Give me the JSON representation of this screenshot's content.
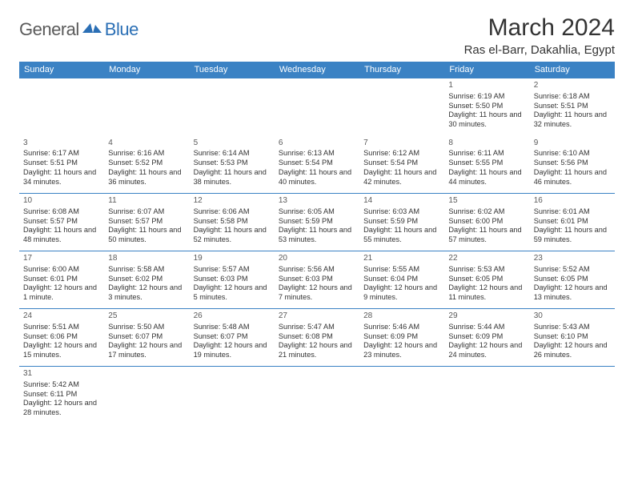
{
  "logo": {
    "part1": "General",
    "part2": "Blue"
  },
  "title": "March 2024",
  "location": "Ras el-Barr, Dakahlia, Egypt",
  "colors": {
    "header_bg": "#3b82c4",
    "header_fg": "#ffffff",
    "border": "#3b82c4",
    "logo_gray": "#5a5a5a",
    "logo_blue": "#2b6fb5",
    "text": "#333333"
  },
  "weekdays": [
    "Sunday",
    "Monday",
    "Tuesday",
    "Wednesday",
    "Thursday",
    "Friday",
    "Saturday"
  ],
  "first_weekday_index": 5,
  "days": [
    {
      "n": 1,
      "sunrise": "6:19 AM",
      "sunset": "5:50 PM",
      "daylight": "11 hours and 30 minutes."
    },
    {
      "n": 2,
      "sunrise": "6:18 AM",
      "sunset": "5:51 PM",
      "daylight": "11 hours and 32 minutes."
    },
    {
      "n": 3,
      "sunrise": "6:17 AM",
      "sunset": "5:51 PM",
      "daylight": "11 hours and 34 minutes."
    },
    {
      "n": 4,
      "sunrise": "6:16 AM",
      "sunset": "5:52 PM",
      "daylight": "11 hours and 36 minutes."
    },
    {
      "n": 5,
      "sunrise": "6:14 AM",
      "sunset": "5:53 PM",
      "daylight": "11 hours and 38 minutes."
    },
    {
      "n": 6,
      "sunrise": "6:13 AM",
      "sunset": "5:54 PM",
      "daylight": "11 hours and 40 minutes."
    },
    {
      "n": 7,
      "sunrise": "6:12 AM",
      "sunset": "5:54 PM",
      "daylight": "11 hours and 42 minutes."
    },
    {
      "n": 8,
      "sunrise": "6:11 AM",
      "sunset": "5:55 PM",
      "daylight": "11 hours and 44 minutes."
    },
    {
      "n": 9,
      "sunrise": "6:10 AM",
      "sunset": "5:56 PM",
      "daylight": "11 hours and 46 minutes."
    },
    {
      "n": 10,
      "sunrise": "6:08 AM",
      "sunset": "5:57 PM",
      "daylight": "11 hours and 48 minutes."
    },
    {
      "n": 11,
      "sunrise": "6:07 AM",
      "sunset": "5:57 PM",
      "daylight": "11 hours and 50 minutes."
    },
    {
      "n": 12,
      "sunrise": "6:06 AM",
      "sunset": "5:58 PM",
      "daylight": "11 hours and 52 minutes."
    },
    {
      "n": 13,
      "sunrise": "6:05 AM",
      "sunset": "5:59 PM",
      "daylight": "11 hours and 53 minutes."
    },
    {
      "n": 14,
      "sunrise": "6:03 AM",
      "sunset": "5:59 PM",
      "daylight": "11 hours and 55 minutes."
    },
    {
      "n": 15,
      "sunrise": "6:02 AM",
      "sunset": "6:00 PM",
      "daylight": "11 hours and 57 minutes."
    },
    {
      "n": 16,
      "sunrise": "6:01 AM",
      "sunset": "6:01 PM",
      "daylight": "11 hours and 59 minutes."
    },
    {
      "n": 17,
      "sunrise": "6:00 AM",
      "sunset": "6:01 PM",
      "daylight": "12 hours and 1 minute."
    },
    {
      "n": 18,
      "sunrise": "5:58 AM",
      "sunset": "6:02 PM",
      "daylight": "12 hours and 3 minutes."
    },
    {
      "n": 19,
      "sunrise": "5:57 AM",
      "sunset": "6:03 PM",
      "daylight": "12 hours and 5 minutes."
    },
    {
      "n": 20,
      "sunrise": "5:56 AM",
      "sunset": "6:03 PM",
      "daylight": "12 hours and 7 minutes."
    },
    {
      "n": 21,
      "sunrise": "5:55 AM",
      "sunset": "6:04 PM",
      "daylight": "12 hours and 9 minutes."
    },
    {
      "n": 22,
      "sunrise": "5:53 AM",
      "sunset": "6:05 PM",
      "daylight": "12 hours and 11 minutes."
    },
    {
      "n": 23,
      "sunrise": "5:52 AM",
      "sunset": "6:05 PM",
      "daylight": "12 hours and 13 minutes."
    },
    {
      "n": 24,
      "sunrise": "5:51 AM",
      "sunset": "6:06 PM",
      "daylight": "12 hours and 15 minutes."
    },
    {
      "n": 25,
      "sunrise": "5:50 AM",
      "sunset": "6:07 PM",
      "daylight": "12 hours and 17 minutes."
    },
    {
      "n": 26,
      "sunrise": "5:48 AM",
      "sunset": "6:07 PM",
      "daylight": "12 hours and 19 minutes."
    },
    {
      "n": 27,
      "sunrise": "5:47 AM",
      "sunset": "6:08 PM",
      "daylight": "12 hours and 21 minutes."
    },
    {
      "n": 28,
      "sunrise": "5:46 AM",
      "sunset": "6:09 PM",
      "daylight": "12 hours and 23 minutes."
    },
    {
      "n": 29,
      "sunrise": "5:44 AM",
      "sunset": "6:09 PM",
      "daylight": "12 hours and 24 minutes."
    },
    {
      "n": 30,
      "sunrise": "5:43 AM",
      "sunset": "6:10 PM",
      "daylight": "12 hours and 26 minutes."
    },
    {
      "n": 31,
      "sunrise": "5:42 AM",
      "sunset": "6:11 PM",
      "daylight": "12 hours and 28 minutes."
    }
  ],
  "labels": {
    "sunrise": "Sunrise:",
    "sunset": "Sunset:",
    "daylight": "Daylight:"
  }
}
